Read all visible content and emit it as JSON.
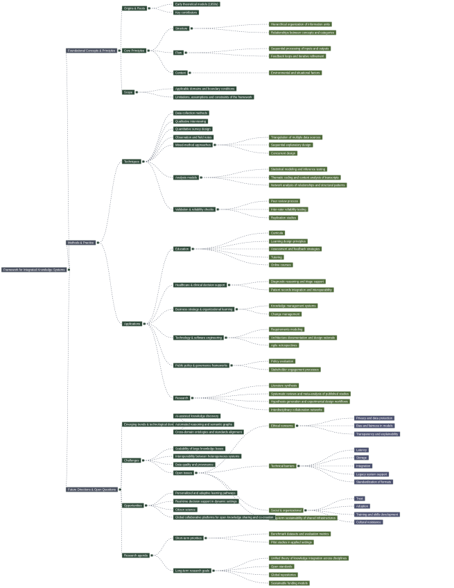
{
  "colors": {
    "root": "#4a5060",
    "branch": "#2f4a3a",
    "leaf": "#4f6b3a",
    "deep": "#4c5170",
    "edge": "#6b7280"
  },
  "nodes": [
    {
      "label": "Framework for Integrated Knowledge Systems",
      "parent": -1
    },
    {
      "label": "Foundational Concepts & Principles",
      "parent": 0
    },
    {
      "label": "Origins & Roots",
      "parent": 1
    },
    {
      "label": "Early theoretical models (1950s)",
      "parent": 2
    },
    {
      "label": "Key contributors",
      "parent": 2
    },
    {
      "label": "Core Principles",
      "parent": 1
    },
    {
      "label": "Structure",
      "parent": 5
    },
    {
      "label": "Hierarchical organization of information units",
      "parent": 6
    },
    {
      "label": "Relationships between concepts and categories",
      "parent": 6
    },
    {
      "label": "Flow",
      "parent": 5
    },
    {
      "label": "Sequential processing of inputs and outputs",
      "parent": 9
    },
    {
      "label": "Feedback loops and iterative refinement",
      "parent": 9
    },
    {
      "label": "Context",
      "parent": 5
    },
    {
      "label": "Environmental and situational factors",
      "parent": 12
    },
    {
      "label": "Scope",
      "parent": 1
    },
    {
      "label": "Applicable domains and boundary conditions",
      "parent": 14
    },
    {
      "label": "Limitations, assumptions and constraints of the framework",
      "parent": 14
    },
    {
      "label": "Methods & Practice",
      "parent": 0
    },
    {
      "label": "Techniques",
      "parent": 17
    },
    {
      "label": "Data collection methods",
      "parent": 18
    },
    {
      "label": "Qualitative interviewing",
      "parent": 18
    },
    {
      "label": "Quantitative survey design",
      "parent": 18
    },
    {
      "label": "Observation and field notes",
      "parent": 18
    },
    {
      "label": "Mixed-method approaches",
      "parent": 18
    },
    {
      "label": "Triangulation of multiple data sources",
      "parent": 23
    },
    {
      "label": "Sequential explanatory design",
      "parent": 23
    },
    {
      "label": "Concurrent design",
      "parent": 23
    },
    {
      "label": "Analysis models",
      "parent": 18
    },
    {
      "label": "Statistical modeling and inference testing",
      "parent": 27
    },
    {
      "label": "Thematic coding and content analysis of transcripts",
      "parent": 27
    },
    {
      "label": "Network analysis of relationships and structural patterns",
      "parent": 27
    },
    {
      "label": "Validation & reliability checks",
      "parent": 18
    },
    {
      "label": "Peer review process",
      "parent": 31
    },
    {
      "label": "Inter-rater reliability testing",
      "parent": 31
    },
    {
      "label": "Replication studies",
      "parent": 31
    },
    {
      "label": "Applications",
      "parent": 17
    },
    {
      "label": "Education",
      "parent": 35
    },
    {
      "label": "Curricula",
      "parent": 36
    },
    {
      "label": "Learning design principles",
      "parent": 36
    },
    {
      "label": "Assessment and feedback strategies",
      "parent": 36
    },
    {
      "label": "Tutoring",
      "parent": 36
    },
    {
      "label": "Online courses",
      "parent": 36
    },
    {
      "label": "Healthcare & clinical decision support",
      "parent": 35
    },
    {
      "label": "Diagnostic reasoning and triage support",
      "parent": 42
    },
    {
      "label": "Patient records integration and interoperability",
      "parent": 42
    },
    {
      "label": "Business strategy & organizational learning",
      "parent": 35
    },
    {
      "label": "Knowledge management systems",
      "parent": 45
    },
    {
      "label": "Change management",
      "parent": 45
    },
    {
      "label": "Technology & software engineering",
      "parent": 35
    },
    {
      "label": "Requirements modeling",
      "parent": 48
    },
    {
      "label": "Architecture documentation and design rationale",
      "parent": 48
    },
    {
      "label": "Agile retrospectives",
      "parent": 48
    },
    {
      "label": "Public policy & governance frameworks",
      "parent": 35
    },
    {
      "label": "Policy evaluation",
      "parent": 52
    },
    {
      "label": "Stakeholder engagement processes",
      "parent": 52
    },
    {
      "label": "Research",
      "parent": 35
    },
    {
      "label": "Literature synthesis",
      "parent": 55
    },
    {
      "label": "Systematic reviews and meta-analysis of published studies",
      "parent": 55
    },
    {
      "label": "Hypothesis generation and experimental design workflows",
      "parent": 55
    },
    {
      "label": "Interdisciplinary collaboration networks",
      "parent": 55
    },
    {
      "label": "Future Directions & Open Questions",
      "parent": 0
    },
    {
      "label": "Emerging trends & technological developments",
      "parent": 60
    },
    {
      "label": "AI-assisted knowledge discovery",
      "parent": 61
    },
    {
      "label": "Automated reasoning and semantic graphs",
      "parent": 61
    },
    {
      "label": "Cross-domain ontologies and standards alignment",
      "parent": 61
    },
    {
      "label": "Challenges",
      "parent": 60
    },
    {
      "label": "Scalability of large knowledge bases",
      "parent": 65
    },
    {
      "label": "Interoperability between heterogeneous systems",
      "parent": 65
    },
    {
      "label": "Data quality and provenance",
      "parent": 65
    },
    {
      "label": "Open issues",
      "parent": 65
    },
    {
      "label": "Ethical concerns",
      "parent": 69
    },
    {
      "label": "Privacy and data protection",
      "parent": 70
    },
    {
      "label": "Bias and fairness in models",
      "parent": 70
    },
    {
      "label": "Transparency and explainability",
      "parent": 70
    },
    {
      "label": "Technical barriers",
      "parent": 69
    },
    {
      "label": "Latency",
      "parent": 74
    },
    {
      "label": "Storage",
      "parent": 74
    },
    {
      "label": "Integration",
      "parent": 74
    },
    {
      "label": "Legacy system support",
      "parent": 74
    },
    {
      "label": "Standardization of formats",
      "parent": 74
    },
    {
      "label": "Social & organizational",
      "parent": 69
    },
    {
      "label": "Trust",
      "parent": 80
    },
    {
      "label": "Adoption",
      "parent": 80
    },
    {
      "label": "Training and skills development",
      "parent": 80
    },
    {
      "label": "Cultural resistance",
      "parent": 80
    },
    {
      "label": "Long-term sustainability of shared infrastructures",
      "parent": 69
    },
    {
      "label": "Opportunities",
      "parent": 60
    },
    {
      "label": "Personalized and adaptive learning pathways",
      "parent": 86
    },
    {
      "label": "Real-time decision support in dynamic settings",
      "parent": 86
    },
    {
      "label": "Citizen science",
      "parent": 86
    },
    {
      "label": "Global collaborative platforms for open knowledge sharing and co-creation",
      "parent": 86
    },
    {
      "label": "Research agenda",
      "parent": 60
    },
    {
      "label": "Short-term priorities",
      "parent": 91
    },
    {
      "label": "Benchmark datasets and evaluation metrics",
      "parent": 92
    },
    {
      "label": "Pilot studies in applied settings",
      "parent": 92
    },
    {
      "label": "Long-term research goals",
      "parent": 91
    },
    {
      "label": "Unified theory of knowledge integration across disciplines",
      "parent": 95
    },
    {
      "label": "Open standards",
      "parent": 95
    },
    {
      "label": "Global repositories",
      "parent": 95
    },
    {
      "label": "Sustainable funding models",
      "parent": 95
    }
  ]
}
